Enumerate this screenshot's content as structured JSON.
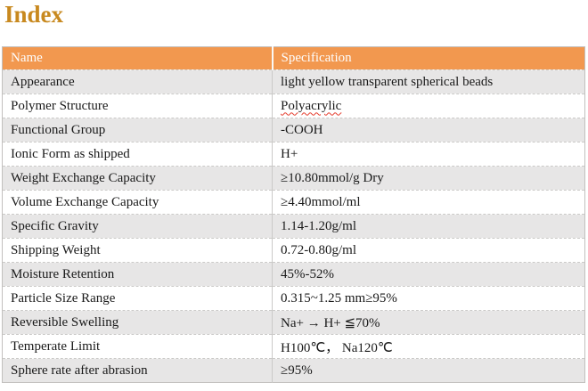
{
  "page": {
    "title": "Index"
  },
  "colors": {
    "title_text": "#C8891F",
    "header_bg": "#F2984F",
    "header_text": "#FDFDFD",
    "banded_row_bg": "#E7E6E6",
    "plain_row_bg": "#FFFFFF",
    "grid_line": "#CBCAC8",
    "spellcheck_underline": "#E53B2C"
  },
  "table": {
    "header": {
      "name": "Name",
      "specification": "Specification"
    },
    "rows": [
      {
        "name": "Appearance",
        "spec": "light yellow transparent spherical beads"
      },
      {
        "name": "Polymer Structure",
        "spec": "Polyacrylic"
      },
      {
        "name": "Functional Group",
        "spec": "-COOH"
      },
      {
        "name": "Ionic Form as shipped",
        "spec": "H+"
      },
      {
        "name": "Weight Exchange Capacity",
        "spec": "≥10.80mmol/g Dry"
      },
      {
        "name": "Volume Exchange Capacity",
        "spec": "≥4.40mmol/ml"
      },
      {
        "name": "Specific Gravity",
        "spec": "1.14-1.20g/ml"
      },
      {
        "name": "Shipping Weight",
        "spec": "0.72-0.80g/ml"
      },
      {
        "name": "Moisture Retention",
        "spec": "45%-52%"
      },
      {
        "name": "Particle Size Range",
        "spec": "0.315~1.25 mm≥95%"
      },
      {
        "name": "Reversible Swelling",
        "spec": "Na+ → H+ ≦70%"
      },
      {
        "name": "Temperate Limit",
        "spec": "H100℃， Na120℃"
      },
      {
        "name": "Sphere rate after abrasion",
        "spec": "≥95%"
      }
    ]
  }
}
